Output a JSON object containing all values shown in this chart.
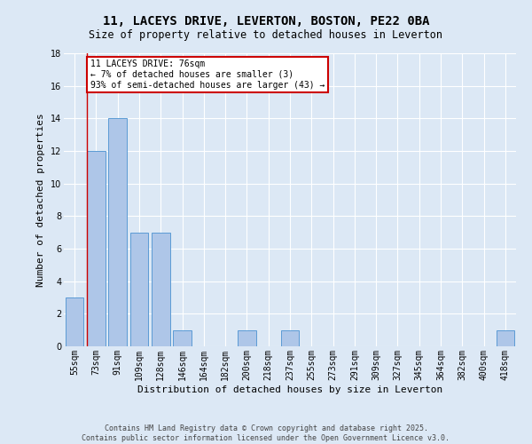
{
  "title": "11, LACEYS DRIVE, LEVERTON, BOSTON, PE22 0BA",
  "subtitle": "Size of property relative to detached houses in Leverton",
  "xlabel": "Distribution of detached houses by size in Leverton",
  "ylabel": "Number of detached properties",
  "categories": [
    "55sqm",
    "73sqm",
    "91sqm",
    "109sqm",
    "128sqm",
    "146sqm",
    "164sqm",
    "182sqm",
    "200sqm",
    "218sqm",
    "237sqm",
    "255sqm",
    "273sqm",
    "291sqm",
    "309sqm",
    "327sqm",
    "345sqm",
    "364sqm",
    "382sqm",
    "400sqm",
    "418sqm"
  ],
  "values": [
    3,
    12,
    14,
    7,
    7,
    1,
    0,
    0,
    1,
    0,
    1,
    0,
    0,
    0,
    0,
    0,
    0,
    0,
    0,
    0,
    1
  ],
  "bar_color": "#aec6e8",
  "bar_edge_color": "#5b9bd5",
  "ylim": [
    0,
    18
  ],
  "yticks": [
    0,
    2,
    4,
    6,
    8,
    10,
    12,
    14,
    16,
    18
  ],
  "vline_x_index": 1,
  "vline_color": "#cc0000",
  "annotation_text": "11 LACEYS DRIVE: 76sqm\n← 7% of detached houses are smaller (3)\n93% of semi-detached houses are larger (43) →",
  "annotation_box_color": "white",
  "annotation_box_edge_color": "#cc0000",
  "footer_text": "Contains HM Land Registry data © Crown copyright and database right 2025.\nContains public sector information licensed under the Open Government Licence v3.0.",
  "background_color": "#dce8f5",
  "grid_color": "white",
  "title_fontsize": 10,
  "subtitle_fontsize": 8.5,
  "tick_fontsize": 7,
  "axis_label_fontsize": 8,
  "annotation_fontsize": 7,
  "footer_fontsize": 6
}
